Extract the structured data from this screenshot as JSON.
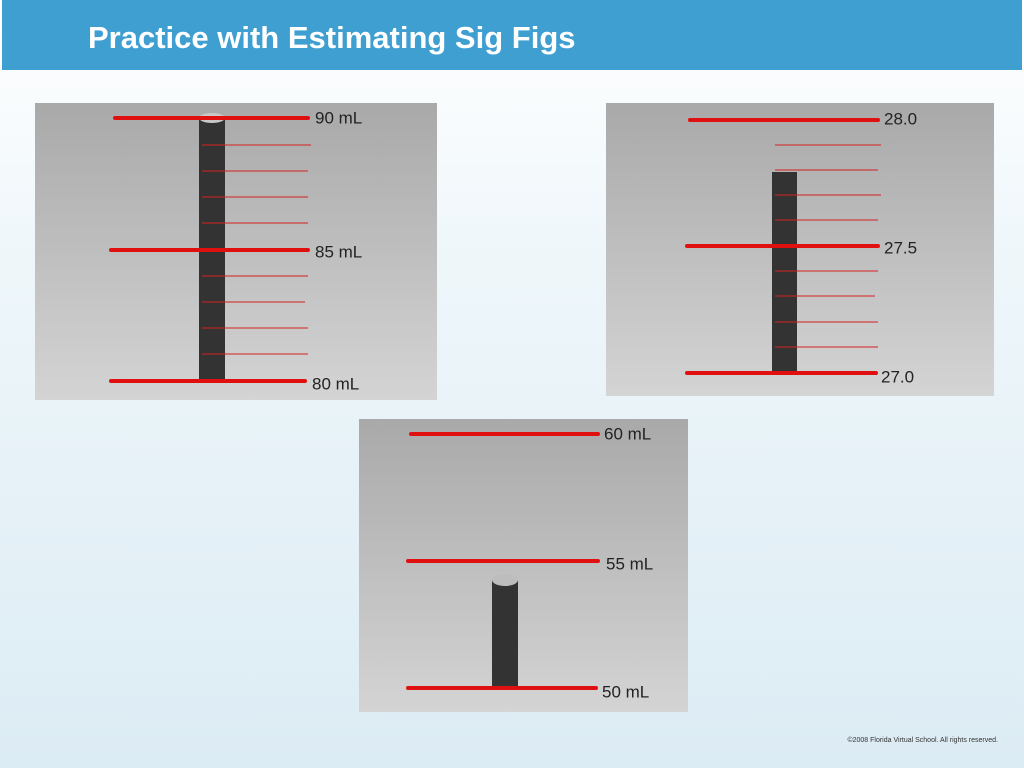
{
  "header": {
    "title": "Practice with Estimating Sig Figs"
  },
  "cylinders": [
    {
      "labels": [
        "90 mL",
        "85 mL",
        "80 mL"
      ]
    },
    {
      "labels": [
        "28.0",
        "27.5",
        "27.0"
      ]
    },
    {
      "labels": [
        "60 mL",
        "55 mL",
        "50 mL"
      ]
    }
  ],
  "footer": {
    "copyright": "©2008 Florida Virtual School. All rights reserved."
  }
}
